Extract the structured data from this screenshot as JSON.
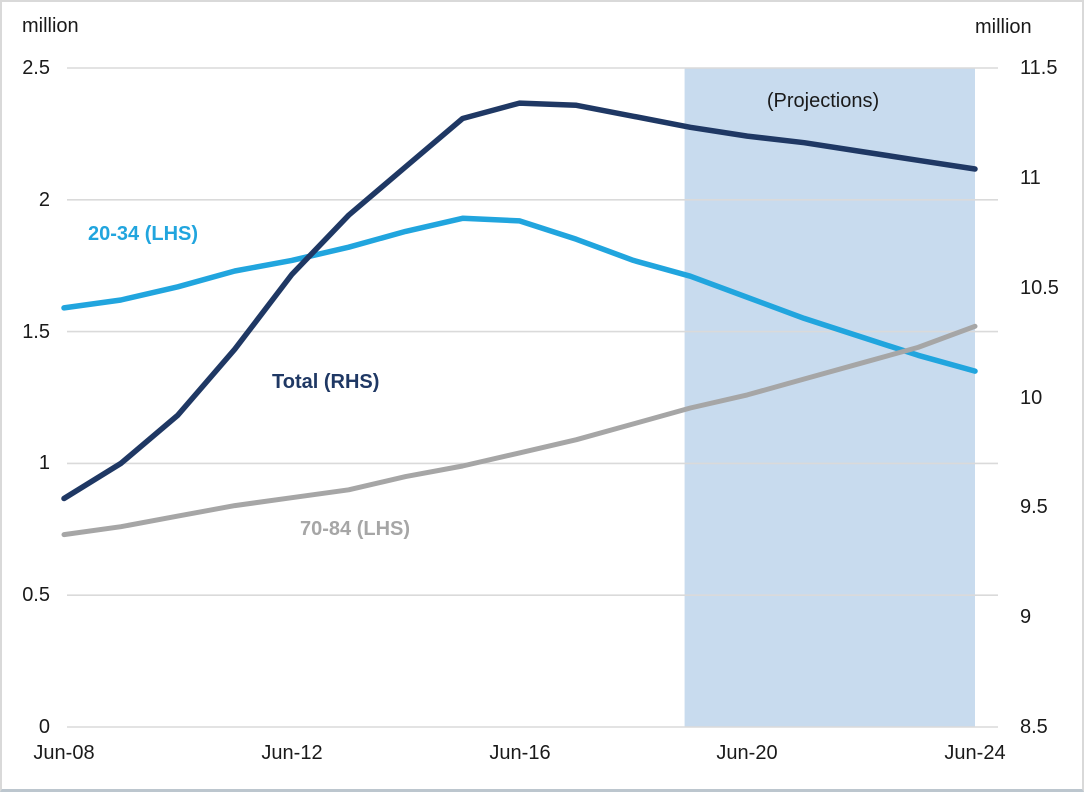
{
  "chart_data": {
    "type": "line",
    "categories": [
      "Jun-08",
      "Jun-09",
      "Jun-10",
      "Jun-11",
      "Jun-12",
      "Jun-13",
      "Jun-14",
      "Jun-15",
      "Jun-16",
      "Jun-17",
      "Jun-18",
      "Jun-19",
      "Jun-20",
      "Jun-21",
      "Jun-22",
      "Jun-23",
      "Jun-24"
    ],
    "left_axis": {
      "title": "million",
      "min": 0,
      "max": 2.5,
      "ticks": [
        "2.5",
        "2",
        "1.5",
        "1",
        "0.5",
        "0"
      ]
    },
    "right_axis": {
      "title": "million",
      "min": 8.5,
      "max": 11.5,
      "ticks": [
        "11.5",
        "11",
        "10.5",
        "10",
        "9.5",
        "9",
        "8.5"
      ]
    },
    "x_axis": {
      "ticks": [
        "Jun-08",
        "Jun-12",
        "Jun-16",
        "Jun-20",
        "Jun-24"
      ],
      "tick_indices": [
        0,
        4,
        8,
        12,
        16
      ]
    },
    "grid": "horizontal",
    "gridline_color": "#dadada",
    "series": [
      {
        "name": "20-34 (LHS)",
        "axis": "left",
        "color": "#21a5de",
        "values": [
          1.59,
          1.62,
          1.67,
          1.73,
          1.77,
          1.82,
          1.88,
          1.93,
          1.92,
          1.85,
          1.77,
          1.71,
          1.63,
          1.55,
          1.48,
          1.41,
          1.35
        ]
      },
      {
        "name": "Total (RHS)",
        "axis": "right",
        "color": "#1f3864",
        "values": [
          9.54,
          9.7,
          9.92,
          10.22,
          10.56,
          10.83,
          11.05,
          11.27,
          11.34,
          11.33,
          11.28,
          11.23,
          11.19,
          11.16,
          11.12,
          11.08,
          11.04
        ]
      },
      {
        "name": "70-84 (LHS)",
        "axis": "left",
        "color": "#a6a6a6",
        "values": [
          0.73,
          0.76,
          0.8,
          0.84,
          0.87,
          0.9,
          0.95,
          0.99,
          1.04,
          1.09,
          1.15,
          1.21,
          1.26,
          1.32,
          1.38,
          1.44,
          1.52
        ]
      }
    ],
    "projection_region": {
      "label": "(Projections)",
      "start_index": 10.9,
      "end_index": 16,
      "color": "#c8dbee"
    }
  }
}
